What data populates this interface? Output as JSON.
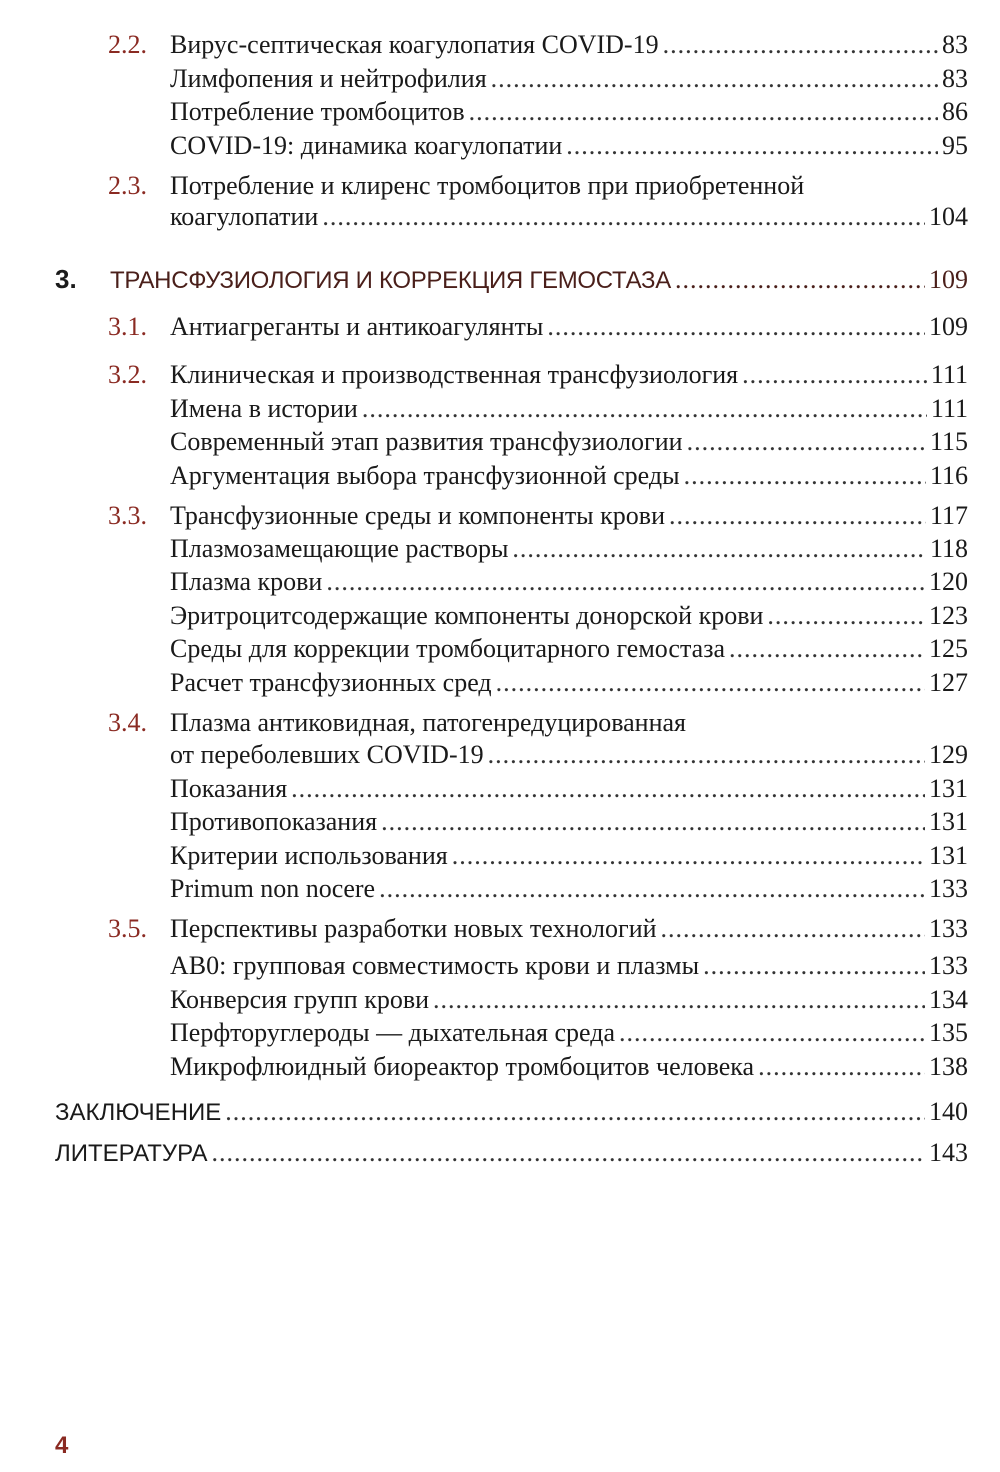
{
  "entries": [
    {
      "num": "2.2.",
      "title": "Вирус-септическая коагулопатия COVID-19",
      "page": "83"
    },
    {
      "title": "Лимфопения и нейтрофилия",
      "page": "83"
    },
    {
      "title": "Потребление тромбоцитов",
      "page": "86"
    },
    {
      "title": "COVID-19: динамика коагулопатии",
      "page": "95"
    },
    {
      "num": "2.3.",
      "title": "Потребление и клиренс тромбоцитов при приобретенной",
      "title2": "коагулопатии",
      "page": "104"
    },
    {
      "num": "3.",
      "title": "ТРАНСФУЗИОЛОГИЯ И КОРРЕКЦИЯ ГЕМОСТАЗА",
      "page": "109"
    },
    {
      "num": "3.1.",
      "title": "Антиагреганты и антикоагулянты",
      "page": "109"
    },
    {
      "num": "3.2.",
      "title": "Клиническая и производственная трансфузиология",
      "page": "111"
    },
    {
      "title": "Имена в истории",
      "page": "111"
    },
    {
      "title": "Современный этап развития трансфузиологии",
      "page": "115"
    },
    {
      "title": "Аргументация выбора трансфузионной среды",
      "page": "116"
    },
    {
      "num": "3.3.",
      "title": "Трансфузионные среды и компоненты крови",
      "page": "117"
    },
    {
      "title": "Плазмозамещающие растворы",
      "page": "118"
    },
    {
      "title": "Плазма крови",
      "page": "120"
    },
    {
      "title": "Эритроцитсодержащие компоненты донорской крови",
      "page": "123"
    },
    {
      "title": "Среды для коррекции тромбоцитарного гемостаза",
      "page": "125"
    },
    {
      "title": "Расчет трансфузионных сред",
      "page": "127"
    },
    {
      "num": "3.4.",
      "title": "Плазма антиковидная, патогенредуцированная",
      "title2": "от переболевших COVID-19",
      "page": "129"
    },
    {
      "title": "Показания",
      "page": "131"
    },
    {
      "title": "Противопоказания",
      "page": "131"
    },
    {
      "title": "Критерии использования",
      "page": "131"
    },
    {
      "title": "Primum non nocere",
      "page": "133"
    },
    {
      "num": "3.5.",
      "title": "Перспективы разработки новых технологий",
      "page": "133"
    },
    {
      "title": "АВ0: групповая совместимость крови и плазмы",
      "page": "133"
    },
    {
      "title": "Конверсия групп крови",
      "page": "134"
    },
    {
      "title": "Перфторуглероды — дыхательная среда",
      "page": "135"
    },
    {
      "title": "Микрофлюидный биореактор тромбоцитов человека",
      "page": "138"
    },
    {
      "title": "ЗАКЛЮЧЕНИЕ",
      "page": "140"
    },
    {
      "title": "ЛИТЕРАТУРА",
      "page": "143"
    }
  ],
  "folio": "4",
  "colors": {
    "section_number": "#8a2a22",
    "chapter_title": "#4a1f1a",
    "text": "#1a1a1a"
  }
}
